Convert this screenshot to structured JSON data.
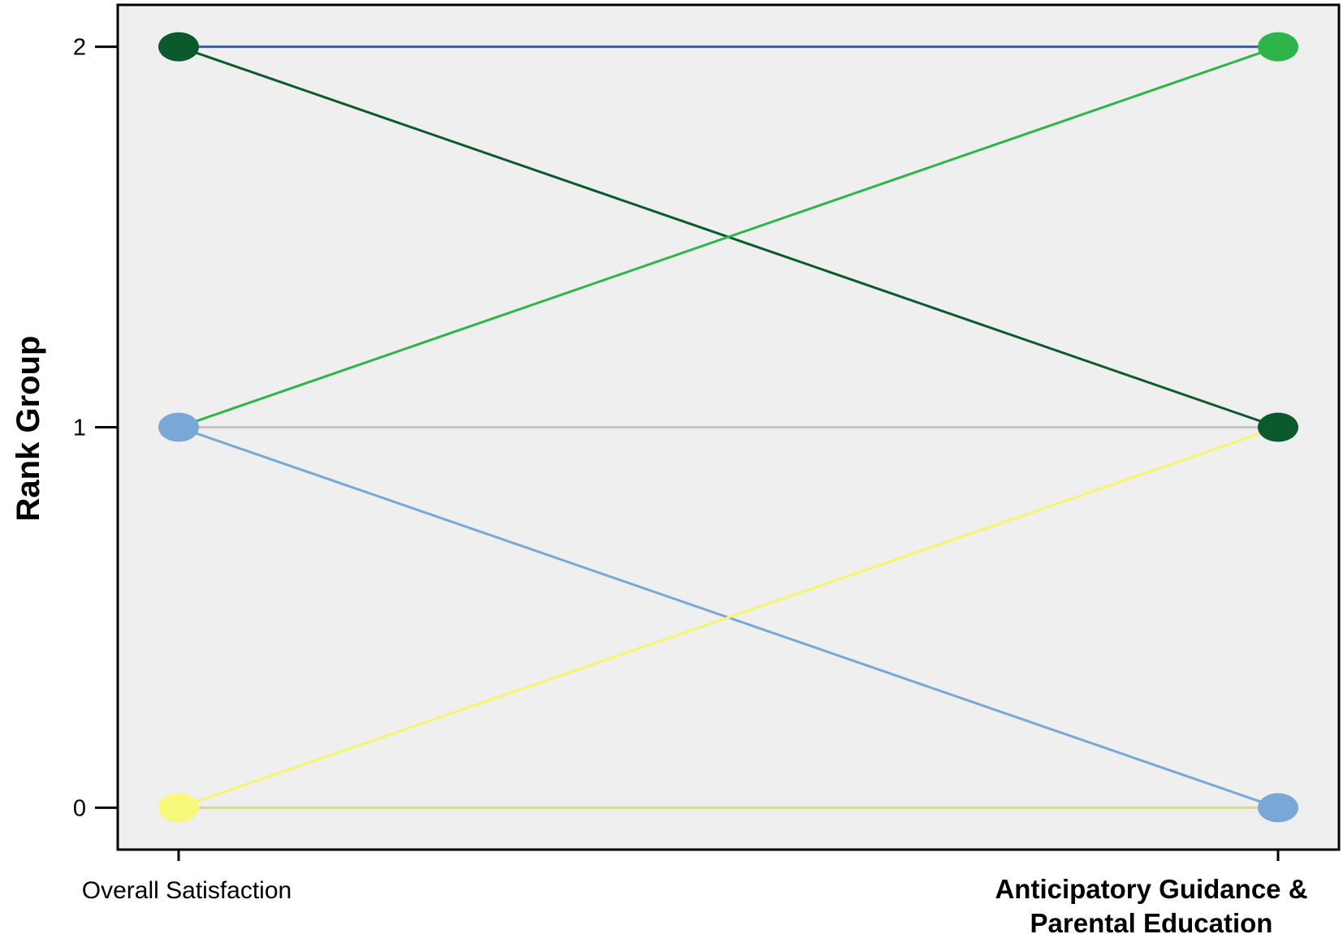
{
  "chart_data": {
    "type": "line",
    "title": "",
    "xlabel": "",
    "ylabel": "Rank Group",
    "categories": [
      {
        "lines": [
          "Overall Satisfaction"
        ],
        "bold": false
      },
      {
        "lines": [
          "Anticipatory Guidance &",
          "Parental Education"
        ],
        "bold": true
      }
    ],
    "yticks": [
      0,
      1,
      2
    ],
    "ylim": [
      -0.11,
      2.11
    ],
    "grid": false,
    "legend": "none",
    "plot_background": "#efefef",
    "series": [
      {
        "values": [
          2,
          2
        ],
        "line_color": "#3b5ba5",
        "marker_colors": [
          "#0b5a2e",
          "#2db54a"
        ]
      },
      {
        "values": [
          2,
          1
        ],
        "line_color": "#0b5a2e",
        "marker_colors": [
          "#0b5a2e",
          "#0b5a2e"
        ]
      },
      {
        "values": [
          1,
          2
        ],
        "line_color": "#2db54a",
        "marker_colors": [
          "#7aa8d6",
          "#2db54a"
        ]
      },
      {
        "values": [
          1,
          1
        ],
        "line_color": "#c8c4c4",
        "marker_colors": [
          "#7aa8d6",
          "#0b5a2e"
        ]
      },
      {
        "values": [
          1,
          0
        ],
        "line_color": "#7aa8d6",
        "marker_colors": [
          "#7aa8d6",
          "#7aa8d6"
        ]
      },
      {
        "values": [
          0,
          1
        ],
        "line_color": "#f6f56c",
        "marker_colors": [
          "#f8f87a",
          "#0b5a2e"
        ]
      },
      {
        "values": [
          0,
          0
        ],
        "line_color": "#d8d49a",
        "marker_colors": [
          "#f8f87a",
          "#7aa8d6"
        ]
      }
    ]
  }
}
